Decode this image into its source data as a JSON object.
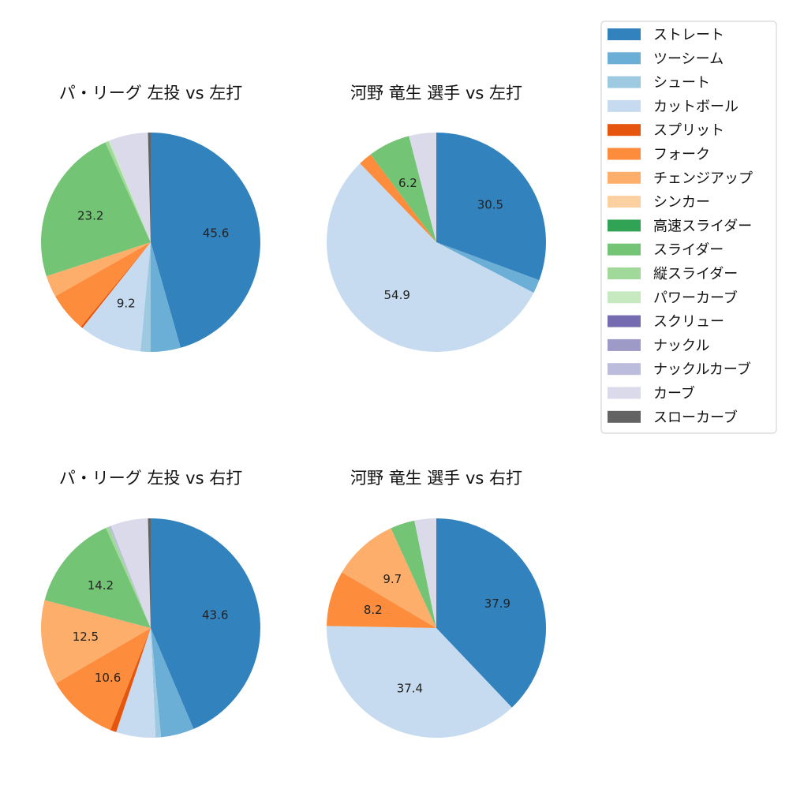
{
  "legend": {
    "placement": "top-right",
    "items": [
      {
        "name": "ストレート",
        "color": "#3182bd"
      },
      {
        "name": "ツーシーム",
        "color": "#6baed6"
      },
      {
        "name": "シュート",
        "color": "#9ecae1"
      },
      {
        "name": "カットボール",
        "color": "#c6dbef"
      },
      {
        "name": "スプリット",
        "color": "#e6550d"
      },
      {
        "name": "フォーク",
        "color": "#fd8d3c"
      },
      {
        "name": "チェンジアップ",
        "color": "#fdae6b"
      },
      {
        "name": "シンカー",
        "color": "#fdd0a2"
      },
      {
        "name": "高速スライダー",
        "color": "#31a354"
      },
      {
        "name": "スライダー",
        "color": "#74c476"
      },
      {
        "name": "縦スライダー",
        "color": "#a1d99b"
      },
      {
        "name": "パワーカーブ",
        "color": "#c7e9c0"
      },
      {
        "name": "スクリュー",
        "color": "#756bb1"
      },
      {
        "name": "ナックル",
        "color": "#9e9ac8"
      },
      {
        "name": "ナックルカーブ",
        "color": "#bcbddc"
      },
      {
        "name": "カーブ",
        "color": "#dadaeb"
      },
      {
        "name": "スローカーブ",
        "color": "#636363"
      }
    ]
  },
  "chart_data": [
    {
      "type": "pie",
      "title": "パ・リーグ 左投 vs 左打",
      "slices": [
        {
          "name": "ストレート",
          "value": 45.6,
          "label": "45.6"
        },
        {
          "name": "ツーシーム",
          "value": 4.4,
          "label": ""
        },
        {
          "name": "シュート",
          "value": 1.5,
          "label": ""
        },
        {
          "name": "カットボール",
          "value": 9.2,
          "label": "9.2"
        },
        {
          "name": "スプリット",
          "value": 0.3,
          "label": ""
        },
        {
          "name": "フォーク",
          "value": 5.8,
          "label": ""
        },
        {
          "name": "チェンジアップ",
          "value": 3.2,
          "label": ""
        },
        {
          "name": "スライダー",
          "value": 23.2,
          "label": "23.2"
        },
        {
          "name": "縦スライダー",
          "value": 0.5,
          "label": ""
        },
        {
          "name": "パワーカーブ",
          "value": 0.2,
          "label": ""
        },
        {
          "name": "カーブ",
          "value": 5.7,
          "label": ""
        },
        {
          "name": "スローカーブ",
          "value": 0.4,
          "label": ""
        }
      ]
    },
    {
      "type": "pie",
      "title": "河野 竜生 選手 vs 左打",
      "slices": [
        {
          "name": "ストレート",
          "value": 30.5,
          "label": "30.5"
        },
        {
          "name": "ツーシーム",
          "value": 2.0,
          "label": ""
        },
        {
          "name": "カットボール",
          "value": 54.9,
          "label": "54.9"
        },
        {
          "name": "フォーク",
          "value": 2.0,
          "label": ""
        },
        {
          "name": "スライダー",
          "value": 6.2,
          "label": "6.2"
        },
        {
          "name": "カーブ",
          "value": 4.0,
          "label": ""
        }
      ]
    },
    {
      "type": "pie",
      "title": "パ・リーグ 左投 vs 右打",
      "slices": [
        {
          "name": "ストレート",
          "value": 43.6,
          "label": "43.6"
        },
        {
          "name": "ツーシーム",
          "value": 4.9,
          "label": ""
        },
        {
          "name": "シュート",
          "value": 0.8,
          "label": ""
        },
        {
          "name": "カットボール",
          "value": 5.8,
          "label": ""
        },
        {
          "name": "スプリット",
          "value": 0.9,
          "label": ""
        },
        {
          "name": "フォーク",
          "value": 10.6,
          "label": "10.6"
        },
        {
          "name": "チェンジアップ",
          "value": 12.5,
          "label": "12.5"
        },
        {
          "name": "スライダー",
          "value": 14.2,
          "label": "14.2"
        },
        {
          "name": "縦スライダー",
          "value": 0.5,
          "label": ""
        },
        {
          "name": "ナックルカーブ",
          "value": 0.3,
          "label": ""
        },
        {
          "name": "カーブ",
          "value": 5.5,
          "label": ""
        },
        {
          "name": "スローカーブ",
          "value": 0.4,
          "label": ""
        }
      ]
    },
    {
      "type": "pie",
      "title": "河野 竜生 選手 vs 右打",
      "slices": [
        {
          "name": "ストレート",
          "value": 37.9,
          "label": "37.9"
        },
        {
          "name": "カットボール",
          "value": 37.4,
          "label": "37.4"
        },
        {
          "name": "フォーク",
          "value": 8.2,
          "label": "8.2"
        },
        {
          "name": "チェンジアップ",
          "value": 9.7,
          "label": "9.7"
        },
        {
          "name": "スライダー",
          "value": 3.6,
          "label": ""
        },
        {
          "name": "カーブ",
          "value": 3.2,
          "label": ""
        }
      ]
    }
  ]
}
